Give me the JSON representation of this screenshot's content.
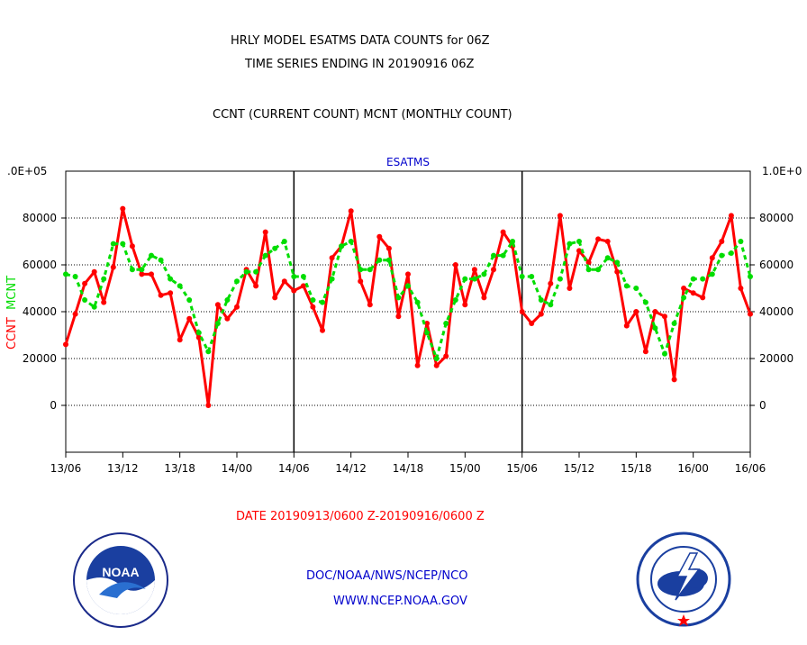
{
  "header": {
    "line1": "HRLY MODEL ESATMS DATA COUNTS for 06Z",
    "line2": "TIME SERIES ENDING IN 20190916 06Z",
    "line3": "CCNT (CURRENT COUNT) MCNT (MONTHLY COUNT)"
  },
  "footer": {
    "date_range": "DATE 20190913/0600 Z-20190916/0600 Z",
    "org": "DOC/NOAA/NWS/NCEP/NCO",
    "url": "WWW.NCEP.NOAA.GOV"
  },
  "logos": {
    "left": "NOAA",
    "right": "NATIONAL WEATHER SERVICE"
  },
  "colors": {
    "ccnt": "#ff0000",
    "mcnt": "#00dd00",
    "title": "#0000cc",
    "axes": "#000000"
  },
  "chart_data": {
    "type": "line",
    "title": "ESATMS",
    "ylabel_left": [
      "CCNT",
      "MCNT"
    ],
    "y_top_left_label": ".0E+05",
    "y_top_right_label": "1.0E+0",
    "ylim": [
      -20000,
      100000
    ],
    "y_ticks": [
      0,
      20000,
      40000,
      60000,
      80000
    ],
    "y_tick_labels": [
      "0",
      "20000",
      "40000",
      "60000",
      "80000"
    ],
    "x_tick_labels": [
      "13/06",
      "13/12",
      "13/18",
      "14/00",
      "14/06",
      "14/12",
      "14/18",
      "15/00",
      "15/06",
      "15/12",
      "15/18",
      "16/00",
      "16/06"
    ],
    "x_range_hours": [
      0,
      72
    ],
    "day_separators_hours": [
      24,
      48
    ],
    "grid": true,
    "series": [
      {
        "name": "CCNT",
        "color": "#ff0000",
        "values": [
          26000,
          39000,
          52000,
          57000,
          44000,
          59000,
          84000,
          68000,
          56000,
          56000,
          47000,
          48000,
          28000,
          37000,
          29000,
          0,
          43000,
          37000,
          42000,
          58000,
          51000,
          74000,
          46000,
          53000,
          49000,
          51000,
          42000,
          32000,
          63000,
          68000,
          83000,
          53000,
          43000,
          72000,
          67000,
          38000,
          56000,
          17000,
          35000,
          17000,
          21000,
          60000,
          43000,
          58000,
          46000,
          58000,
          74000,
          68000,
          40000,
          35000,
          39000,
          52000,
          81000,
          50000,
          66000,
          61000,
          71000,
          70000,
          57000,
          34000,
          40000,
          23000,
          40000,
          38000,
          11000,
          50000,
          48000,
          46000,
          63000,
          70000,
          81000,
          50000,
          39000
        ]
      },
      {
        "name": "MCNT",
        "color": "#00dd00",
        "values": [
          56000,
          55000,
          45000,
          42000,
          54000,
          69000,
          69000,
          58000,
          58000,
          64000,
          62000,
          54000,
          51000,
          45000,
          31000,
          23000,
          35000,
          45000,
          53000,
          57000,
          57000,
          64000,
          67000,
          70000,
          55000,
          55000,
          45000,
          44000,
          54000,
          68000,
          70000,
          58000,
          58000,
          62000,
          62000,
          46000,
          51000,
          44000,
          31000,
          20000,
          35000,
          45000,
          54000,
          54000,
          56000,
          64000,
          64000,
          70000,
          55000,
          55000,
          45000,
          43000,
          54000,
          69000,
          70000,
          58000,
          58000,
          63000,
          61000,
          51000,
          50000,
          44000,
          33000,
          22000,
          35000,
          46000,
          54000,
          54000,
          56000,
          64000,
          65000,
          70000,
          55000
        ]
      }
    ]
  }
}
